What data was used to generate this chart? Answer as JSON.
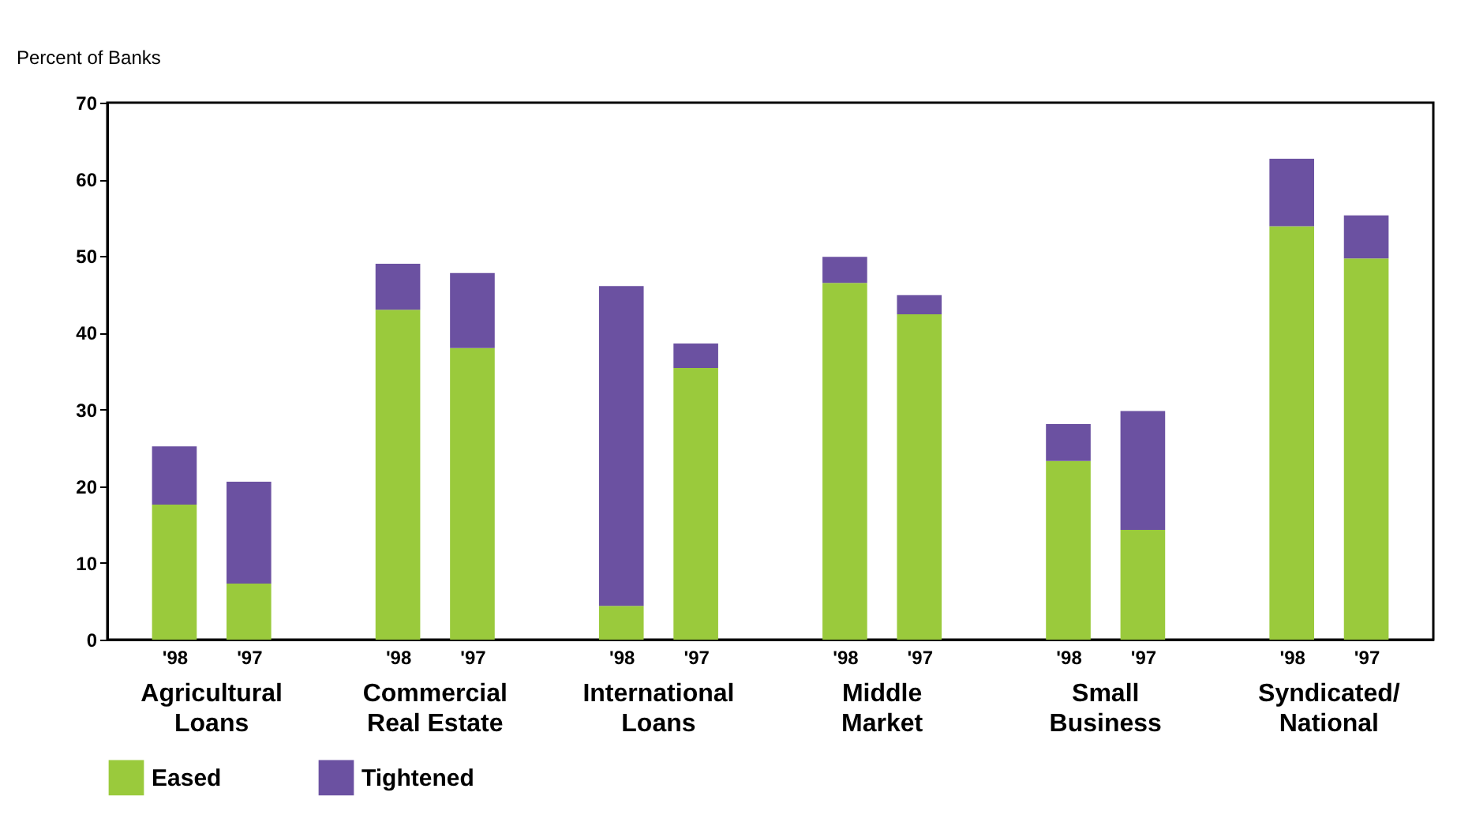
{
  "chart_data": {
    "type": "bar",
    "stacked": true,
    "ylabel": "Percent of Banks",
    "categories": [
      "'98",
      "'97",
      "'98",
      "'97",
      "'98",
      "'97",
      "'98",
      "'97",
      "'98",
      "'97",
      "'98",
      "'97"
    ],
    "series": [
      {
        "name": "Eased",
        "color": "#9aca3c",
        "values": [
          17.6,
          7.3,
          43.0,
          38.0,
          4.4,
          35.4,
          46.5,
          42.4,
          23.3,
          14.3,
          53.9,
          49.7
        ]
      },
      {
        "name": "Tightened",
        "color": "#6b51a1",
        "values": [
          7.6,
          13.3,
          6.0,
          9.8,
          41.7,
          3.2,
          3.4,
          2.5,
          4.8,
          15.5,
          8.8,
          5.6
        ]
      }
    ],
    "annotations": [
      "Agricultural\nLoans",
      "Commercial\nReal Estate",
      "International\nLoans",
      "Middle\nMarket",
      "Small\nBusiness",
      "Syndicated/\nNational"
    ],
    "ylim": [
      0,
      70
    ],
    "yticks": [
      0,
      10,
      20,
      30,
      40,
      50,
      60,
      70
    ],
    "grid": false,
    "legend": "bottom"
  }
}
